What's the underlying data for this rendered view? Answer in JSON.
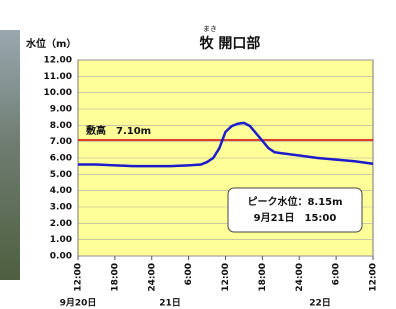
{
  "chart_data": {
    "type": "line",
    "title": "牧 開口部",
    "title_ruby": "まき",
    "y_label": "水位（m）",
    "x": [
      0,
      3,
      6,
      9,
      12,
      15,
      18,
      20,
      21,
      22,
      23,
      24,
      25,
      26,
      27,
      28,
      29,
      30,
      31,
      32,
      33,
      36,
      39,
      42,
      45,
      48
    ],
    "series": [
      {
        "color": "#1c1ccc",
        "values": [
          5.6,
          5.6,
          5.55,
          5.5,
          5.5,
          5.5,
          5.55,
          5.6,
          5.75,
          6.0,
          6.6,
          7.6,
          7.95,
          8.1,
          8.15,
          7.95,
          7.5,
          7.05,
          6.6,
          6.35,
          6.3,
          6.15,
          6.0,
          5.9,
          5.8,
          5.65
        ]
      }
    ],
    "xlim": [
      0,
      48
    ],
    "xticks": [
      {
        "value": 0,
        "label": "12:00"
      },
      {
        "value": 6,
        "label": "18:00"
      },
      {
        "value": 12,
        "label": "24:00"
      },
      {
        "value": 18,
        "label": "6:00"
      },
      {
        "value": 24,
        "label": "12:00"
      },
      {
        "value": 30,
        "label": "18:00"
      },
      {
        "value": 36,
        "label": "24:00"
      },
      {
        "value": 42,
        "label": "6:00"
      },
      {
        "value": 48,
        "label": "12:00"
      }
    ],
    "date_labels": [
      "9月20日",
      "21日",
      "22日"
    ],
    "ylim": [
      0,
      12
    ],
    "yticks": [
      {
        "value": 0,
        "label": "0.00"
      },
      {
        "value": 1,
        "label": "1.00"
      },
      {
        "value": 2,
        "label": "2.00"
      },
      {
        "value": 3,
        "label": "3.00"
      },
      {
        "value": 4,
        "label": "4.00"
      },
      {
        "value": 5,
        "label": "5.00"
      },
      {
        "value": 6,
        "label": "6.00"
      },
      {
        "value": 7,
        "label": "7.00"
      },
      {
        "value": 8,
        "label": "8.00"
      },
      {
        "value": 9,
        "label": "9.00"
      },
      {
        "value": 10,
        "label": "10.00"
      },
      {
        "value": 11,
        "label": "11.00"
      },
      {
        "value": 12,
        "label": "12.00"
      }
    ],
    "grid": true,
    "plot_background": "#ffff99",
    "threshold": {
      "value": 7.1,
      "label": "敷高　7.10m",
      "color": "#d40000"
    },
    "peak_annotation": [
      "ピーク水位：8.15m",
      "9月21日　15:00"
    ]
  }
}
